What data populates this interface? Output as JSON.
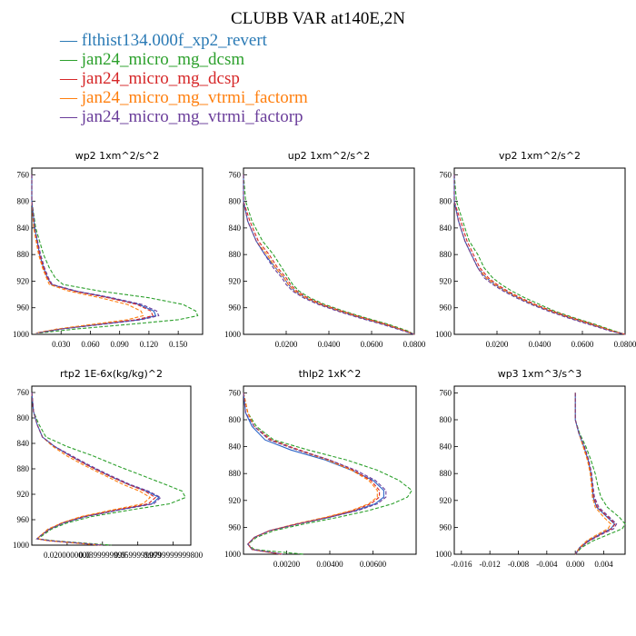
{
  "title": "CLUBB VAR at140E,2N",
  "legend": [
    {
      "label": "— flthist134.000f_xp2_revert",
      "color": "#2a7ab5"
    },
    {
      "label": "— jan24_micro_mg_dcsm",
      "color": "#2ca02c"
    },
    {
      "label": "— jan24_micro_mg_dcsp",
      "color": "#d62728"
    },
    {
      "label": "— jan24_micro_mg_vtrmi_factorm",
      "color": "#ff7f0e"
    },
    {
      "label": "— jan24_micro_mg_vtrmi_factorp",
      "color": "#6a3d9a"
    }
  ],
  "series_colors": [
    "#2a64c8",
    "#2ca02c",
    "#d62728",
    "#ff7f0e",
    "#6a3d9a"
  ],
  "chart_data": [
    {
      "type": "line",
      "title": "wp2  1xm^2/s^2",
      "xlim": [
        0,
        0.175
      ],
      "ylim": [
        1000,
        750
      ],
      "xticks": [
        "0.030",
        "0.060",
        "0.090",
        "0.120",
        "0.150"
      ],
      "xtick_values": [
        0.03,
        0.06,
        0.09,
        0.12,
        0.15
      ],
      "yticks": [
        "760",
        "800",
        "840",
        "880",
        "920",
        "960",
        "1000"
      ],
      "ytick_values": [
        760,
        800,
        840,
        880,
        920,
        960,
        1000
      ],
      "y": [
        760,
        800,
        840,
        880,
        900,
        915,
        925,
        935,
        945,
        955,
        965,
        972,
        978,
        985,
        992,
        998
      ],
      "series": [
        {
          "values": [
            0,
            0,
            0.003,
            0.008,
            0.012,
            0.016,
            0.02,
            0.045,
            0.08,
            0.11,
            0.125,
            0.127,
            0.11,
            0.07,
            0.03,
            0.005
          ]
        },
        {
          "values": [
            0,
            0,
            0.004,
            0.012,
            0.018,
            0.024,
            0.032,
            0.07,
            0.12,
            0.155,
            0.168,
            0.17,
            0.15,
            0.1,
            0.045,
            0.008
          ]
        },
        {
          "values": [
            0,
            0,
            0.003,
            0.008,
            0.012,
            0.016,
            0.02,
            0.043,
            0.078,
            0.108,
            0.122,
            0.124,
            0.107,
            0.068,
            0.029,
            0.005
          ]
        },
        {
          "values": [
            0,
            0,
            0.002,
            0.007,
            0.011,
            0.015,
            0.018,
            0.038,
            0.07,
            0.098,
            0.112,
            0.114,
            0.098,
            0.062,
            0.026,
            0.004
          ]
        },
        {
          "values": [
            0,
            0,
            0.003,
            0.009,
            0.013,
            0.017,
            0.021,
            0.046,
            0.082,
            0.113,
            0.128,
            0.13,
            0.112,
            0.072,
            0.031,
            0.005
          ]
        }
      ]
    },
    {
      "type": "line",
      "title": "up2  1xm^2/s^2",
      "xlim": [
        0,
        0.08
      ],
      "ylim": [
        1000,
        750
      ],
      "xticks": [
        "0.0200",
        "0.0400",
        "0.0600",
        "0.0800"
      ],
      "xtick_values": [
        0.02,
        0.04,
        0.06,
        0.08
      ],
      "yticks": [
        "760",
        "800",
        "840",
        "880",
        "920",
        "960",
        "1000"
      ],
      "ytick_values": [
        760,
        800,
        840,
        880,
        920,
        960,
        1000
      ],
      "y": [
        760,
        800,
        830,
        860,
        880,
        900,
        915,
        925,
        935,
        945,
        955,
        965,
        975,
        985,
        995,
        1000
      ],
      "series": [
        {
          "values": [
            0,
            0,
            0.002,
            0.006,
            0.01,
            0.015,
            0.019,
            0.021,
            0.024,
            0.029,
            0.036,
            0.045,
            0.055,
            0.066,
            0.076,
            0.08
          ]
        },
        {
          "values": [
            0,
            0.001,
            0.004,
            0.009,
            0.014,
            0.018,
            0.021,
            0.023,
            0.026,
            0.031,
            0.038,
            0.047,
            0.057,
            0.068,
            0.077,
            0.08
          ]
        },
        {
          "values": [
            0,
            0,
            0.003,
            0.007,
            0.012,
            0.016,
            0.02,
            0.022,
            0.025,
            0.03,
            0.037,
            0.046,
            0.056,
            0.067,
            0.076,
            0.08
          ]
        },
        {
          "values": [
            0,
            0,
            0.002,
            0.006,
            0.011,
            0.015,
            0.019,
            0.021,
            0.024,
            0.029,
            0.036,
            0.045,
            0.055,
            0.066,
            0.076,
            0.08
          ]
        },
        {
          "values": [
            0,
            0,
            0.002,
            0.006,
            0.01,
            0.014,
            0.018,
            0.02,
            0.023,
            0.028,
            0.035,
            0.044,
            0.054,
            0.065,
            0.075,
            0.08
          ]
        }
      ]
    },
    {
      "type": "line",
      "title": "vp2  1xm^2/s^2",
      "xlim": [
        0,
        0.08
      ],
      "ylim": [
        1000,
        750
      ],
      "xticks": [
        "0.0200",
        "0.0400",
        "0.0600",
        "0.0800"
      ],
      "xtick_values": [
        0.02,
        0.04,
        0.06,
        0.08
      ],
      "yticks": [
        "760",
        "800",
        "840",
        "880",
        "920",
        "960",
        "1000"
      ],
      "ytick_values": [
        760,
        800,
        840,
        880,
        920,
        960,
        1000
      ],
      "y": [
        760,
        800,
        830,
        860,
        880,
        900,
        915,
        925,
        935,
        945,
        955,
        965,
        975,
        985,
        995,
        1000
      ],
      "series": [
        {
          "values": [
            0,
            0,
            0.002,
            0.005,
            0.008,
            0.011,
            0.015,
            0.019,
            0.024,
            0.03,
            0.037,
            0.045,
            0.054,
            0.064,
            0.074,
            0.08
          ]
        },
        {
          "values": [
            0,
            0.001,
            0.004,
            0.007,
            0.011,
            0.014,
            0.018,
            0.022,
            0.027,
            0.033,
            0.04,
            0.047,
            0.056,
            0.066,
            0.075,
            0.08
          ]
        },
        {
          "values": [
            0,
            0,
            0.003,
            0.006,
            0.009,
            0.012,
            0.016,
            0.02,
            0.025,
            0.031,
            0.038,
            0.046,
            0.055,
            0.065,
            0.074,
            0.08
          ]
        },
        {
          "values": [
            0,
            0,
            0.002,
            0.005,
            0.008,
            0.011,
            0.015,
            0.019,
            0.024,
            0.03,
            0.037,
            0.045,
            0.054,
            0.064,
            0.074,
            0.08
          ]
        },
        {
          "values": [
            0,
            0,
            0.002,
            0.005,
            0.008,
            0.011,
            0.014,
            0.018,
            0.023,
            0.029,
            0.036,
            0.044,
            0.053,
            0.063,
            0.073,
            0.08
          ]
        }
      ]
    },
    {
      "type": "line",
      "title": "rtp2  1E-6x(kg/kg)^2",
      "xlim": [
        0,
        0.09
      ],
      "ylim": [
        1000,
        750
      ],
      "xticks": [
        "0.0200000000",
        "0.0399999999",
        "0.0599999999",
        "0.0799999999800"
      ],
      "xtick_values": [
        0.02,
        0.04,
        0.06,
        0.08
      ],
      "yticks": [
        "760",
        "800",
        "840",
        "880",
        "920",
        "960",
        "1000"
      ],
      "ytick_values": [
        760,
        800,
        840,
        880,
        920,
        960,
        1000
      ],
      "y": [
        760,
        790,
        810,
        830,
        845,
        860,
        875,
        890,
        905,
        915,
        925,
        935,
        945,
        955,
        965,
        975,
        985,
        990,
        993,
        1000
      ],
      "series": [
        {
          "values": [
            0,
            0.001,
            0.003,
            0.006,
            0.013,
            0.022,
            0.032,
            0.043,
            0.055,
            0.065,
            0.072,
            0.068,
            0.048,
            0.03,
            0.018,
            0.01,
            0.005,
            0.003,
            0.01,
            0.04
          ]
        },
        {
          "values": [
            0,
            0.001,
            0.004,
            0.008,
            0.02,
            0.035,
            0.048,
            0.062,
            0.076,
            0.085,
            0.087,
            0.078,
            0.055,
            0.034,
            0.02,
            0.011,
            0.006,
            0.003,
            0.012,
            0.045
          ]
        },
        {
          "values": [
            0,
            0.001,
            0.003,
            0.006,
            0.013,
            0.022,
            0.032,
            0.043,
            0.055,
            0.064,
            0.07,
            0.066,
            0.047,
            0.029,
            0.017,
            0.01,
            0.005,
            0.003,
            0.01,
            0.04
          ]
        },
        {
          "values": [
            0,
            0.001,
            0.003,
            0.006,
            0.012,
            0.02,
            0.03,
            0.041,
            0.052,
            0.061,
            0.067,
            0.063,
            0.045,
            0.028,
            0.017,
            0.009,
            0.005,
            0.003,
            0.009,
            0.038
          ]
        },
        {
          "values": [
            0,
            0.001,
            0.003,
            0.006,
            0.013,
            0.023,
            0.033,
            0.044,
            0.056,
            0.066,
            0.073,
            0.069,
            0.049,
            0.031,
            0.018,
            0.01,
            0.005,
            0.003,
            0.01,
            0.04
          ]
        }
      ]
    },
    {
      "type": "line",
      "title": "thlp2  1xK^2",
      "xlim": [
        0,
        0.008
      ],
      "ylim": [
        1000,
        750
      ],
      "xticks": [
        "0.00200",
        "0.00400",
        "0.00600"
      ],
      "xtick_values": [
        0.002,
        0.004,
        0.006
      ],
      "yticks": [
        "760",
        "800",
        "840",
        "880",
        "920",
        "960",
        "1000"
      ],
      "ytick_values": [
        760,
        800,
        840,
        880,
        920,
        960,
        1000
      ],
      "y": [
        760,
        790,
        810,
        830,
        845,
        860,
        875,
        890,
        905,
        915,
        925,
        935,
        945,
        955,
        965,
        975,
        985,
        993,
        1000
      ],
      "series": [
        {
          "values": [
            0,
            0.0001,
            0.0004,
            0.001,
            0.0022,
            0.0038,
            0.005,
            0.006,
            0.0065,
            0.0065,
            0.0061,
            0.0052,
            0.004,
            0.0025,
            0.0012,
            0.0005,
            0.0002,
            0.0004,
            0.0018
          ]
        },
        {
          "values": [
            0,
            0.0002,
            0.0006,
            0.0014,
            0.003,
            0.0048,
            0.0062,
            0.0072,
            0.0078,
            0.0076,
            0.0069,
            0.0058,
            0.0044,
            0.0028,
            0.0014,
            0.0006,
            0.0002,
            0.0005,
            0.0028
          ]
        },
        {
          "values": [
            0,
            0.0002,
            0.0005,
            0.0013,
            0.0026,
            0.004,
            0.0051,
            0.0059,
            0.0063,
            0.0063,
            0.0059,
            0.0051,
            0.0039,
            0.0025,
            0.0012,
            0.0005,
            0.0002,
            0.0004,
            0.0018
          ]
        },
        {
          "values": [
            0,
            0.0002,
            0.0005,
            0.0012,
            0.0025,
            0.0039,
            0.005,
            0.0058,
            0.0062,
            0.0062,
            0.0058,
            0.005,
            0.0038,
            0.0024,
            0.0012,
            0.0005,
            0.0002,
            0.0004,
            0.0017
          ]
        },
        {
          "values": [
            0,
            0.0001,
            0.0005,
            0.0012,
            0.0025,
            0.004,
            0.0052,
            0.0061,
            0.0066,
            0.0066,
            0.0062,
            0.0053,
            0.004,
            0.0025,
            0.0012,
            0.0005,
            0.0002,
            0.0004,
            0.0018
          ]
        }
      ]
    },
    {
      "type": "line",
      "title": "wp3  1xm^3/s^3",
      "xlim": [
        -0.017,
        0.007
      ],
      "ylim": [
        1000,
        750
      ],
      "xticks": [
        "-0.016",
        "-0.012",
        "-0.008",
        "-0.004",
        "0.000",
        "0.004"
      ],
      "xtick_values": [
        -0.016,
        -0.012,
        -0.008,
        -0.004,
        0.0,
        0.004
      ],
      "yticks": [
        "760",
        "800",
        "840",
        "880",
        "920",
        "960",
        "1000"
      ],
      "ytick_values": [
        760,
        800,
        840,
        880,
        920,
        960,
        1000
      ],
      "y": [
        760,
        800,
        820,
        840,
        860,
        880,
        900,
        915,
        930,
        945,
        955,
        962,
        970,
        980,
        990,
        1000
      ],
      "series": [
        {
          "values": [
            0,
            0.0,
            0.0005,
            0.0012,
            0.0018,
            0.0022,
            0.0024,
            0.0025,
            0.003,
            0.0045,
            0.0055,
            0.005,
            0.0035,
            0.0018,
            0.0006,
            0.0
          ]
        },
        {
          "values": [
            0,
            0.0,
            0.0006,
            0.0015,
            0.0022,
            0.0028,
            0.0032,
            0.0036,
            0.0045,
            0.0062,
            0.007,
            0.0066,
            0.0048,
            0.0025,
            0.0009,
            0.0
          ]
        },
        {
          "values": [
            0,
            0.0,
            0.0005,
            0.0012,
            0.0018,
            0.0022,
            0.0024,
            0.0026,
            0.0031,
            0.0046,
            0.0056,
            0.0051,
            0.0036,
            0.0019,
            0.0007,
            0.0
          ]
        },
        {
          "values": [
            0,
            0.0,
            0.0005,
            0.0011,
            0.0017,
            0.0021,
            0.0023,
            0.0024,
            0.0028,
            0.004,
            0.005,
            0.0046,
            0.0032,
            0.0016,
            0.0006,
            0.0
          ]
        },
        {
          "values": [
            0,
            0.0,
            0.0005,
            0.0013,
            0.0019,
            0.0023,
            0.0025,
            0.0027,
            0.0033,
            0.0048,
            0.0058,
            0.0054,
            0.0038,
            0.002,
            0.0007,
            0.0
          ]
        }
      ]
    }
  ]
}
